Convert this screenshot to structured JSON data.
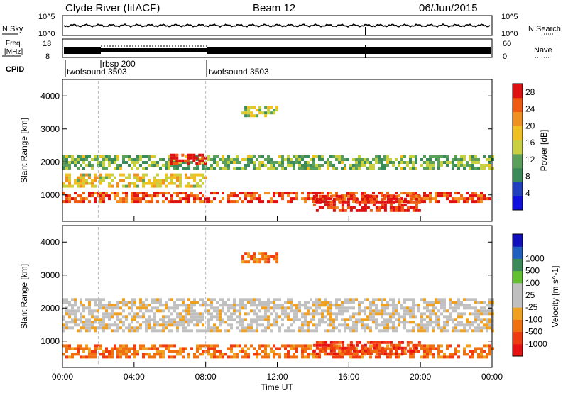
{
  "header": {
    "site": "Clyde River (fitACF)",
    "beam": "Beam 12",
    "date": "06/Jun/2015"
  },
  "status_panels": {
    "nsky_label": "N.Sky",
    "nsearch_label": "N.Search",
    "noise_ticks": [
      "10^5",
      "10^0"
    ],
    "freq_label_1": "Freq.",
    "freq_label_2": "[MHz]",
    "freq_ticks": [
      "18",
      "8"
    ],
    "nave_label": "Nave",
    "nave_ticks": [
      "60",
      "0"
    ],
    "cpid_label": "CPID",
    "cpid_entries": [
      {
        "name": "twofsound 3503",
        "start_hour": 0
      },
      {
        "name": "rbsp 200",
        "start_hour": 2
      },
      {
        "name": "twofsound 3503",
        "start_hour": 8
      }
    ]
  },
  "colors": {
    "power_scale": [
      "#1010e0",
      "#2040c0",
      "#3a8a5a",
      "#5aa05a",
      "#c8d040",
      "#f0c020",
      "#f09020",
      "#f05a10",
      "#e01010"
    ],
    "velocity_scale": [
      "#e81010",
      "#f03a10",
      "#f07010",
      "#f0a020",
      "#c0c0c0",
      "#c0c0c0",
      "#60c030",
      "#3a8a5a",
      "#2060c0",
      "#1010c0"
    ]
  },
  "chart_data": [
    {
      "type": "heatmap",
      "panel": "power",
      "ylabel": "Slant Range [km]",
      "xlabel": "",
      "x_range_hours": [
        0,
        24
      ],
      "ylim": [
        200,
        4500
      ],
      "y_ticks": [
        "1000",
        "2000",
        "3000",
        "4000"
      ],
      "colorbar_label": "Power [dB]",
      "colorbar_ticks": [
        "4",
        "8",
        "12",
        "16",
        "20",
        "24",
        "28"
      ],
      "colorbar_range": [
        0,
        30
      ],
      "bands": [
        {
          "t0": 0,
          "t1": 24,
          "r0": 800,
          "r1": 1100,
          "level": 26
        },
        {
          "t0": 0,
          "t1": 8,
          "r0": 1300,
          "r1": 1650,
          "level": 18
        },
        {
          "t0": 0,
          "t1": 24,
          "r0": 1800,
          "r1": 2200,
          "level": 12
        },
        {
          "t0": 6,
          "t1": 8,
          "r0": 1950,
          "r1": 2250,
          "level": 29
        },
        {
          "t0": 14,
          "t1": 20,
          "r0": 500,
          "r1": 1000,
          "level": 28
        },
        {
          "t0": 10,
          "t1": 12,
          "r0": 3400,
          "r1": 3700,
          "level": 14
        }
      ]
    },
    {
      "type": "heatmap",
      "panel": "velocity",
      "ylabel": "Slant Range [km]",
      "xlabel": "Time UT",
      "x_ticks": [
        "00:00",
        "04:00",
        "08:00",
        "12:00",
        "16:00",
        "20:00",
        "00:00"
      ],
      "x_range_hours": [
        0,
        24
      ],
      "ylim": [
        200,
        4500
      ],
      "y_ticks": [
        "1000",
        "2000",
        "3000",
        "4000"
      ],
      "colorbar_label": "Velocity [m s^-1]",
      "colorbar_ticks": [
        "-1000",
        "-500",
        "-100",
        "-25",
        "25",
        "100",
        "500",
        "1000"
      ],
      "bands": [
        {
          "t0": 0,
          "t1": 24,
          "r0": 500,
          "r1": 900,
          "level": -150
        },
        {
          "t0": 0,
          "t1": 24,
          "r0": 1300,
          "r1": 2300,
          "level": 0
        },
        {
          "t0": 14,
          "t1": 20,
          "r0": 600,
          "r1": 1000,
          "level": -500
        },
        {
          "t0": 10,
          "t1": 12,
          "r0": 3400,
          "r1": 3700,
          "level": -200
        }
      ]
    }
  ]
}
